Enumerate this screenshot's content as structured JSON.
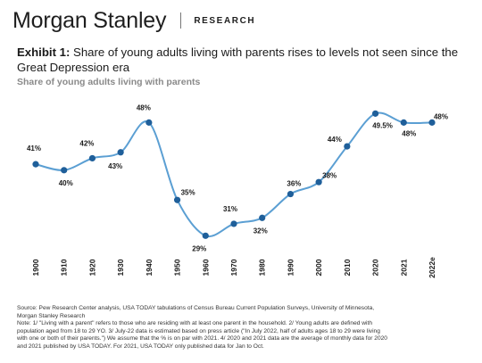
{
  "header": {
    "brand": "Morgan Stanley",
    "section": "RESEARCH"
  },
  "exhibit": {
    "label": "Exhibit 1:",
    "title": "Share of young adults living with parents rises to levels not seen since the Great Depression era"
  },
  "chart_data": {
    "type": "line",
    "title": "Share of young adults living with parents",
    "categories": [
      "1900",
      "1910",
      "1920",
      "1930",
      "1940",
      "1950",
      "1960",
      "1970",
      "1980",
      "1990",
      "2000",
      "2010",
      "2020",
      "2021",
      "2022e"
    ],
    "values": [
      41,
      40,
      42,
      43,
      48,
      35,
      29,
      31,
      32,
      36,
      38,
      44,
      49.5,
      48,
      48
    ],
    "data_labels": [
      "41%",
      "40%",
      "42%",
      "43%",
      "48%",
      "35%",
      "29%",
      "31%",
      "32%",
      "36%",
      "38%",
      "44%",
      "49.5%",
      "48%",
      "48%"
    ],
    "ylim": [
      28,
      50
    ],
    "grid": false,
    "legend": "none",
    "colors": {
      "line": "#5b9fd3",
      "marker": "#1f5f9a"
    }
  },
  "notes": [
    "Source: Pew Research Center analysis, USA TODAY tabulations of Census Bureau Current Population Surveys, University of Minnesota,",
    "Morgan Stanley Research",
    "Note: 1/ \"Living with a parent\" refers to those who are residing with at least one parent in the household. 2/ Young adults are defined with",
    "population aged from 18 to 29 YO. 3/ July-22 data is estimated based on press article (\"In July 2022, half of adults ages 18 to 29 were living",
    "with one or both of their parents.\") We assume that the % is on par with 2021. 4/ 2020 and 2021 data are the average of monthly data for 2020",
    "and 2021 published by USA TODAY. For 2021, USA TODAY only published data for Jan to Oct."
  ]
}
